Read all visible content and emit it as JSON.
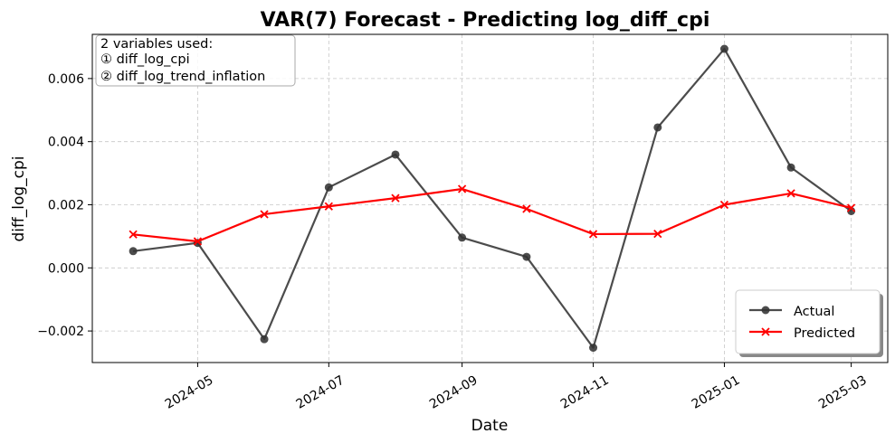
{
  "chart_data": {
    "type": "line",
    "title": "VAR(7) Forecast - Predicting log_diff_cpi",
    "xlabel": "Date",
    "ylabel": "diff_log_cpi",
    "x": [
      "2024-04",
      "2024-05",
      "2024-06",
      "2024-07",
      "2024-08",
      "2024-09",
      "2024-10",
      "2024-11",
      "2024-12",
      "2025-01",
      "2025-02",
      "2025-03"
    ],
    "xlim": [
      "2024-03-13",
      "2025-03-18"
    ],
    "ylim": [
      -0.003,
      0.0074
    ],
    "xticks": [
      "2024-05",
      "2024-07",
      "2024-09",
      "2024-11",
      "2025-01",
      "2025-03"
    ],
    "yticks": [
      -0.002,
      0.0,
      0.002,
      0.004,
      0.006
    ],
    "ytick_labels": [
      "−0.002",
      "0.000",
      "0.002",
      "0.004",
      "0.006"
    ],
    "grid": true,
    "legend_position": "lower-right",
    "series": [
      {
        "name": "Actual",
        "color": "#333333",
        "marker": "circle",
        "values": [
          0.00053,
          0.00079,
          -0.00226,
          0.00255,
          0.00359,
          0.00096,
          0.00035,
          -0.00253,
          0.00445,
          0.00694,
          0.00318,
          0.0018
        ]
      },
      {
        "name": "Predicted",
        "color": "#ff0000",
        "marker": "x",
        "values": [
          0.00106,
          0.00084,
          0.0017,
          0.00195,
          0.00221,
          0.0025,
          0.00187,
          0.00107,
          0.00108,
          0.002,
          0.00236,
          0.0019
        ]
      }
    ],
    "annotation": {
      "lines": [
        "2 variables used:",
        "① diff_log_cpi",
        "② diff_log_trend_inflation"
      ]
    }
  }
}
